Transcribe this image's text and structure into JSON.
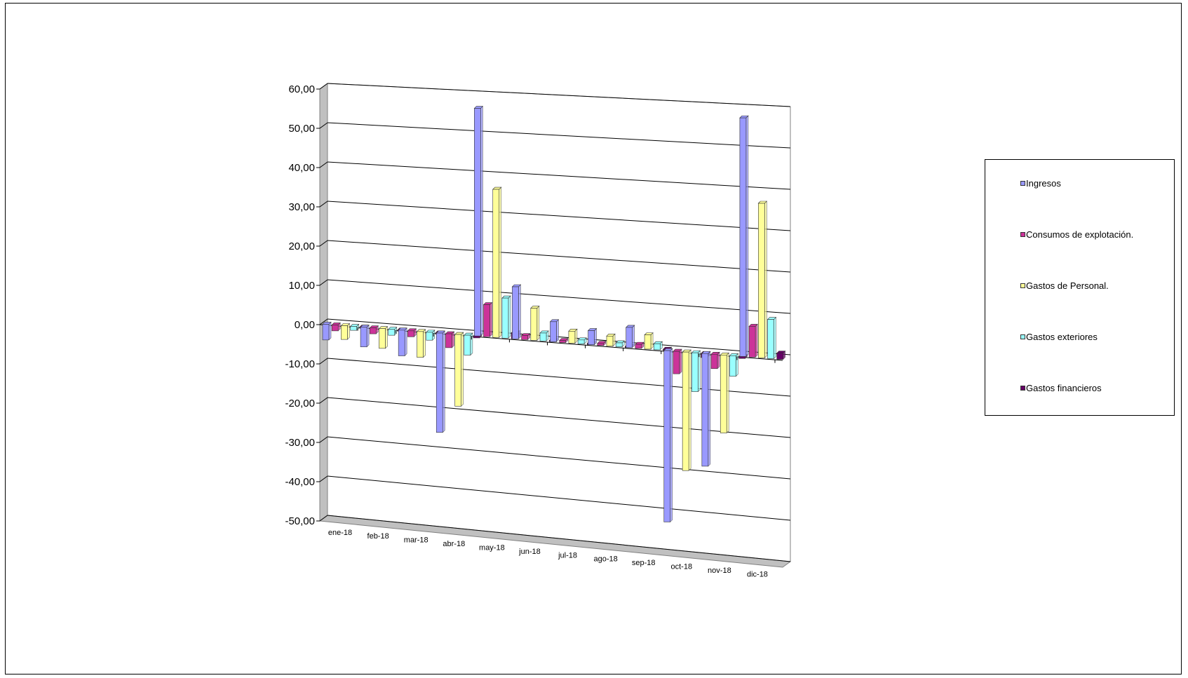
{
  "chart_data": {
    "type": "bar",
    "title": "",
    "xlabel": "",
    "ylabel": "",
    "ylim": [
      -50,
      60
    ],
    "y_ticks": [
      "60,00",
      "50,00",
      "40,00",
      "30,00",
      "20,00",
      "10,00",
      "0,00",
      "-10,00",
      "-20,00",
      "-30,00",
      "-40,00",
      "-50,00"
    ],
    "categories": [
      "ene-18",
      "feb-18",
      "mar-18",
      "abr-18",
      "may-18",
      "jun-18",
      "jul-18",
      "ago-18",
      "sep-18",
      "oct-18",
      "nov-18",
      "dic-18"
    ],
    "grid": true,
    "legend_position": "right",
    "series": [
      {
        "name": "Ingresos",
        "color": "#9999ff",
        "values": [
          -4,
          -5,
          -6.5,
          -25,
          57,
          13,
          5,
          3.5,
          5,
          -42,
          -27.5,
          58
        ]
      },
      {
        "name": "Consumos de explotación.",
        "color": "#cc3399",
        "values": [
          -1.5,
          -1.5,
          -1.5,
          -3.5,
          8,
          1,
          0.5,
          0.5,
          1,
          -5.5,
          -3.5,
          7.5
        ]
      },
      {
        "name": "Gastos de Personal.",
        "color": "#ffff99",
        "values": [
          -3.5,
          -5,
          -6.5,
          -18,
          37,
          8,
          3,
          2.5,
          3.5,
          -29,
          -19,
          37.5
        ]
      },
      {
        "name": "Gastos exteriores",
        "color": "#99ffff",
        "values": [
          -1,
          -1.5,
          -2,
          -5,
          10,
          2,
          1,
          1,
          1.5,
          -9.5,
          -5,
          9.5
        ]
      },
      {
        "name": "Gastos financieros",
        "color": "#660066",
        "values": [
          -0.3,
          -0.3,
          -0.3,
          -0.5,
          1.5,
          0.3,
          0.3,
          0.3,
          0.3,
          -1,
          -0.5,
          1.5
        ]
      }
    ]
  }
}
